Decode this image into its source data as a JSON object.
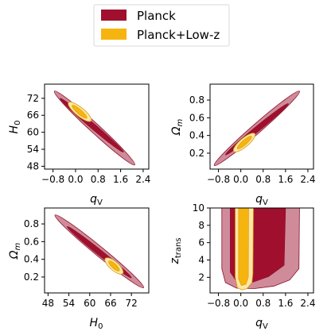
{
  "colors": {
    "planck_outer": "#cf8b9a",
    "planck_inner": "#a0102e",
    "planck_edge": "#8a0f26",
    "lowz_outer": "#fde7a7",
    "lowz_inner": "#f6b40e",
    "lowz_edge": "#d89a0a"
  },
  "legend": {
    "items": [
      "Planck",
      "Planck+Low-z"
    ]
  },
  "chart_data": [
    {
      "id": "H0_vs_qv",
      "type": "contour",
      "xlabel": "q_V",
      "ylabel": "H_0",
      "xlim": [
        -1.1,
        2.6
      ],
      "ylim": [
        47,
        77
      ],
      "xticks": [
        -0.8,
        0.0,
        0.8,
        1.6,
        2.4
      ],
      "xtick_labels": [
        "−0.8",
        "0.0",
        "0.8",
        "1.6",
        "2.4"
      ],
      "yticks": [
        48,
        54,
        60,
        66,
        72
      ],
      "ytick_labels": [
        "48",
        "54",
        "60",
        "66",
        "72"
      ],
      "series": [
        {
          "name": "Planck",
          "center": [
            0.55,
            61.5
          ],
          "ends_outer": [
            [
              -0.75,
              74.5
            ],
            [
              2.1,
              48.5
            ]
          ],
          "w_outer": 1.4,
          "ends_inner": [
            [
              -0.55,
              72.0
            ],
            [
              1.7,
              53.0
            ]
          ],
          "w_inner": 0.8
        },
        {
          "name": "Planck+Low-z",
          "center": [
            0.2,
            67.0
          ],
          "ends_outer": [
            [
              -0.25,
              70.5
            ],
            [
              0.55,
              64.0
            ]
          ],
          "w_outer": 1.3,
          "ends_inner": [
            [
              -0.12,
              69.5
            ],
            [
              0.4,
              65.0
            ]
          ],
          "w_inner": 0.7
        }
      ]
    },
    {
      "id": "Om_vs_qv",
      "type": "contour",
      "xlabel": "q_V",
      "ylabel": "Ω_m",
      "xlim": [
        -1.1,
        2.6
      ],
      "ylim": [
        0.02,
        0.98
      ],
      "xticks": [
        -0.8,
        0.0,
        0.8,
        1.6,
        2.4
      ],
      "xtick_labels": [
        "−0.8",
        "0.0",
        "0.8",
        "1.6",
        "2.4"
      ],
      "yticks": [
        0.2,
        0.4,
        0.6,
        0.8
      ],
      "ytick_labels": [
        "0.2",
        "0.4",
        "0.6",
        "0.8"
      ],
      "series": [
        {
          "name": "Planck",
          "center": [
            0.55,
            0.47
          ],
          "ends_outer": [
            [
              -0.95,
              0.06
            ],
            [
              2.1,
              0.9
            ]
          ],
          "w_outer": 1.4,
          "ends_inner": [
            [
              -0.55,
              0.18
            ],
            [
              1.7,
              0.76
            ]
          ],
          "w_inner": 0.8
        },
        {
          "name": "Planck+Low-z",
          "center": [
            0.2,
            0.32
          ],
          "ends_outer": [
            [
              -0.25,
              0.22
            ],
            [
              0.5,
              0.42
            ]
          ],
          "w_outer": 1.3,
          "ends_inner": [
            [
              -0.12,
              0.25
            ],
            [
              0.38,
              0.39
            ]
          ],
          "w_inner": 0.7
        }
      ]
    },
    {
      "id": "Om_vs_H0",
      "type": "contour",
      "xlabel": "H_0",
      "ylabel": "Ω_m",
      "xlim": [
        47,
        77
      ],
      "ylim": [
        0.02,
        0.98
      ],
      "xticks": [
        48,
        54,
        60,
        66,
        72
      ],
      "xtick_labels": [
        "48",
        "54",
        "60",
        "66",
        "72"
      ],
      "yticks": [
        0.2,
        0.4,
        0.6,
        0.8
      ],
      "ytick_labels": [
        "0.2",
        "0.4",
        "0.6",
        "0.8"
      ],
      "series": [
        {
          "name": "Planck",
          "center": [
            61.5,
            0.5
          ],
          "ends_outer": [
            [
              50.0,
              0.9
            ],
            [
              75.5,
              0.08
            ]
          ],
          "w_outer": 1.4,
          "ends_inner": [
            [
              53.5,
              0.77
            ],
            [
              72.0,
              0.19
            ]
          ],
          "w_inner": 0.8
        },
        {
          "name": "Planck+Low-z",
          "center": [
            67.0,
            0.33
          ],
          "ends_outer": [
            [
              64.5,
              0.41
            ],
            [
              69.5,
              0.24
            ]
          ],
          "w_outer": 1.3,
          "ends_inner": [
            [
              65.5,
              0.38
            ],
            [
              68.5,
              0.27
            ]
          ],
          "w_inner": 0.7
        }
      ]
    },
    {
      "id": "ztrans_vs_qv",
      "type": "contour",
      "xlabel": "q_V",
      "ylabel": "z_trans",
      "xlim": [
        -1.1,
        2.6
      ],
      "ylim": [
        0.2,
        10
      ],
      "xticks": [
        -0.8,
        0.0,
        0.8,
        1.6,
        2.4
      ],
      "xtick_labels": [
        "−0.8",
        "0.0",
        "0.8",
        "1.6",
        "2.4"
      ],
      "yticks": [
        2,
        4,
        6,
        8,
        10
      ],
      "ytick_labels": [
        "2",
        "4",
        "6",
        "8",
        "10"
      ],
      "series": [
        {
          "name": "Planck",
          "outer": [
            [
              -0.68,
              10
            ],
            [
              -0.68,
              3.0
            ],
            [
              -0.55,
              1.4
            ],
            [
              -0.15,
              0.75
            ],
            [
              0.5,
              0.7
            ],
            [
              1.2,
              1.0
            ],
            [
              1.75,
              1.7
            ],
            [
              2.08,
              3.0
            ],
            [
              2.1,
              10
            ]
          ],
          "inner": [
            [
              -0.38,
              10
            ],
            [
              -0.38,
              2.6
            ],
            [
              -0.1,
              1.3
            ],
            [
              0.4,
              1.4
            ],
            [
              1.0,
              2.1
            ],
            [
              1.55,
              3.4
            ],
            [
              1.6,
              10
            ]
          ]
        },
        {
          "name": "Planck+Low-z",
          "outer": [
            [
              -0.2,
              10
            ],
            [
              -0.2,
              2.0
            ],
            [
              -0.12,
              0.8
            ],
            [
              0.05,
              0.55
            ],
            [
              0.22,
              0.7
            ],
            [
              0.4,
              1.4
            ],
            [
              0.43,
              2.4
            ],
            [
              0.45,
              10
            ]
          ],
          "inner": [
            [
              -0.08,
              10
            ],
            [
              -0.08,
              1.8
            ],
            [
              0.02,
              1.05
            ],
            [
              0.18,
              1.2
            ],
            [
              0.27,
              2.0
            ],
            [
              0.28,
              10
            ]
          ]
        }
      ]
    }
  ]
}
